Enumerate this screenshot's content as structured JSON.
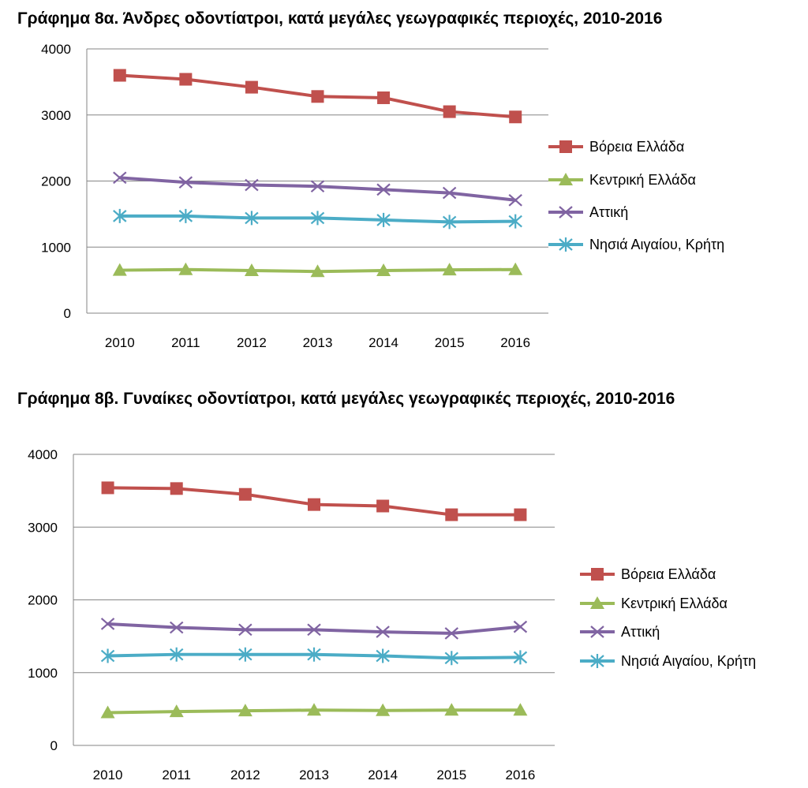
{
  "chart_data": [
    {
      "type": "line",
      "title": "Γράφημα 8α. Άνδρες οδοντίατροι, κατά μεγάλες γεωγραφικές περιοχές, 2010-2016",
      "xlabel": "",
      "ylabel": "",
      "categories": [
        "2010",
        "2011",
        "2012",
        "2013",
        "2014",
        "2015",
        "2016"
      ],
      "yticks": [
        "0",
        "1000",
        "2000",
        "3000",
        "4000"
      ],
      "ylim": [
        0,
        4000
      ],
      "grid": true,
      "legend_position": "right",
      "series": [
        {
          "name": "Βόρεια Ελλάδα",
          "color": "#c0504d",
          "marker": "square",
          "values": [
            3600,
            3540,
            3420,
            3280,
            3260,
            3050,
            2970
          ]
        },
        {
          "name": "Κεντρική Ελλάδα",
          "color": "#9bbb59",
          "marker": "triangle",
          "values": [
            650,
            660,
            645,
            630,
            645,
            655,
            660
          ]
        },
        {
          "name": "Αττική",
          "color": "#8064a2",
          "marker": "x",
          "values": [
            2050,
            1980,
            1940,
            1920,
            1870,
            1820,
            1710
          ]
        },
        {
          "name": "Νησιά Αιγαίου, Κρήτη",
          "color": "#4bacc6",
          "marker": "star",
          "values": [
            1470,
            1470,
            1440,
            1440,
            1410,
            1380,
            1390
          ]
        }
      ]
    },
    {
      "type": "line",
      "title": "Γράφημα 8β. Γυναίκες οδοντίατροι, κατά μεγάλες γεωγραφικές περιοχές, 2010-2016",
      "xlabel": "",
      "ylabel": "",
      "categories": [
        "2010",
        "2011",
        "2012",
        "2013",
        "2014",
        "2015",
        "2016"
      ],
      "yticks": [
        "0",
        "1000",
        "2000",
        "3000",
        "4000"
      ],
      "ylim": [
        0,
        4000
      ],
      "grid": true,
      "legend_position": "right",
      "series": [
        {
          "name": "Βόρεια Ελλάδα",
          "color": "#c0504d",
          "marker": "square",
          "values": [
            3540,
            3530,
            3450,
            3310,
            3290,
            3170,
            3170
          ]
        },
        {
          "name": "Κεντρική Ελλάδα",
          "color": "#9bbb59",
          "marker": "triangle",
          "values": [
            450,
            465,
            475,
            485,
            480,
            485,
            485
          ]
        },
        {
          "name": "Αττική",
          "color": "#8064a2",
          "marker": "x",
          "values": [
            1670,
            1620,
            1590,
            1590,
            1560,
            1540,
            1630
          ]
        },
        {
          "name": "Νησιά Αιγαίου, Κρήτη",
          "color": "#4bacc6",
          "marker": "star",
          "values": [
            1230,
            1250,
            1250,
            1250,
            1230,
            1200,
            1210
          ]
        }
      ]
    }
  ]
}
